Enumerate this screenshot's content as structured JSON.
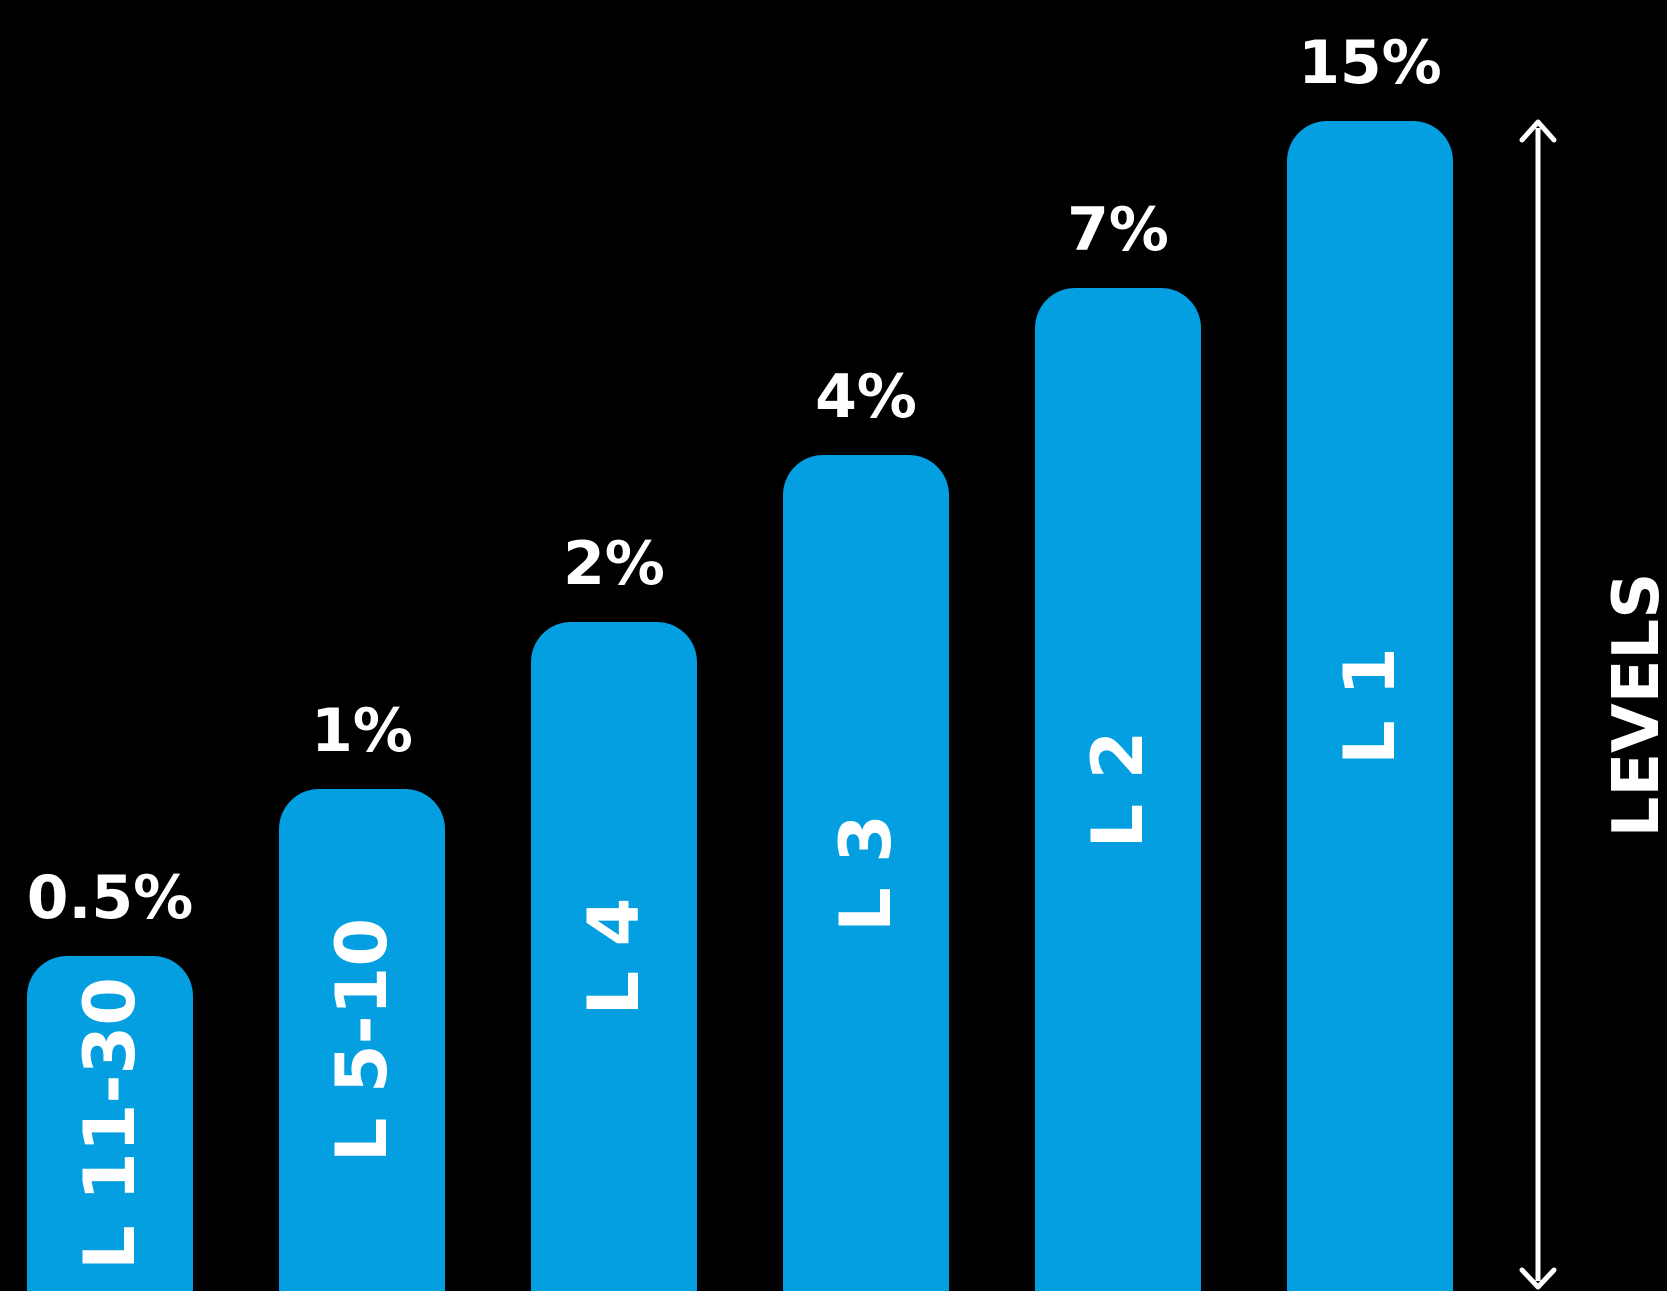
{
  "chart_data": {
    "type": "bar",
    "categories": [
      "L 11-30",
      "L 5-10",
      "L 4",
      "L 3",
      "L 2",
      "L 1"
    ],
    "values": [
      0.5,
      1,
      2,
      4,
      7,
      15
    ],
    "value_labels": [
      "0.5%",
      "1%",
      "2%",
      "4%",
      "7%",
      "15%"
    ],
    "title": "",
    "xlabel": "",
    "ylabel": "LEVELS",
    "bar_color": "#039FE0",
    "text_color": "#FFFFFF",
    "background": "#000000",
    "grid": false,
    "legend": "none",
    "bar_height_rule": "evenly stepped per level (not proportional to value)",
    "axis_arrow": "double-headed, right side"
  }
}
